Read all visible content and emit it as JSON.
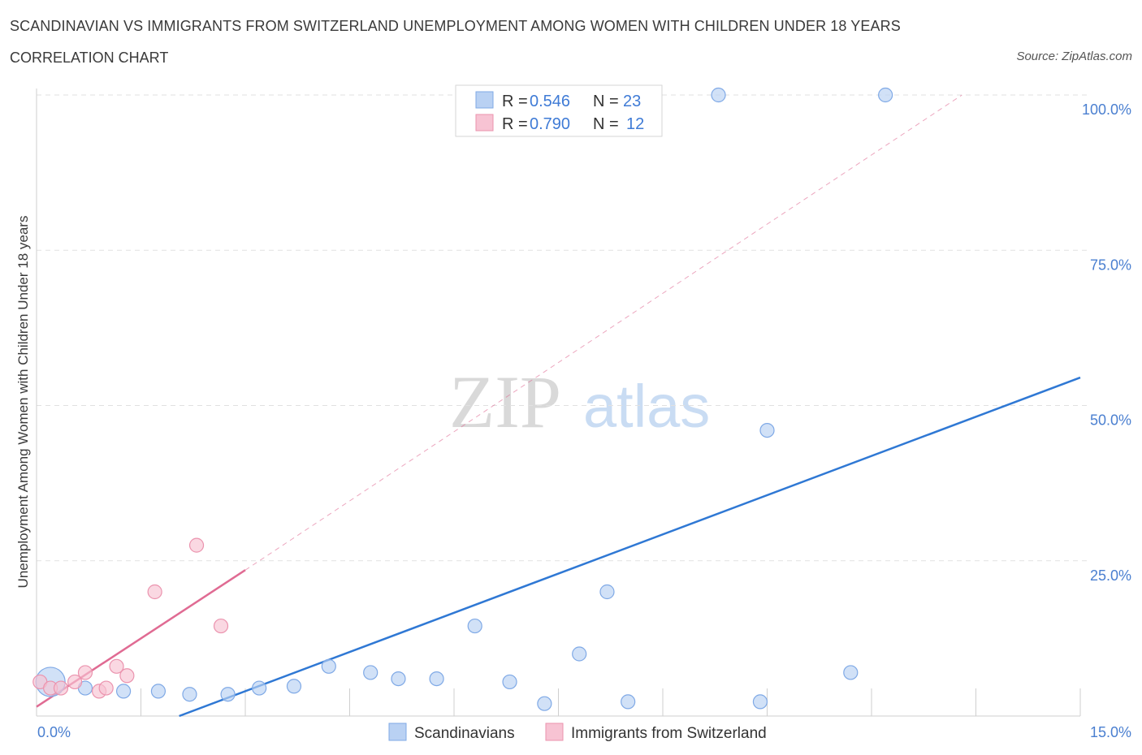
{
  "title": "SCANDINAVIAN VS IMMIGRANTS FROM SWITZERLAND UNEMPLOYMENT AMONG WOMEN WITH CHILDREN UNDER 18 YEARS",
  "subtitle": "CORRELATION CHART",
  "source": "Source: ZipAtlas.com",
  "watermark": {
    "zip": "ZIP",
    "atlas": "atlas"
  },
  "legend_box": {
    "r_label": "R =",
    "n_label": "N =",
    "rows": [
      {
        "r": "0.546",
        "n": "23"
      },
      {
        "r": "0.790",
        "n": "12"
      }
    ]
  },
  "colors": {
    "blue_fill": "#b9d1f3",
    "blue_stroke": "#7fa9e6",
    "blue_line": "#2f78d4",
    "pink_fill": "#f7c3d3",
    "pink_stroke": "#eb93ae",
    "pink_line": "#e06b93",
    "grid": "#e1e1e1",
    "tick_text": "#4a7fd0"
  },
  "chart_data": {
    "type": "scatter",
    "title": "SCANDINAVIAN VS IMMIGRANTS FROM SWITZERLAND UNEMPLOYMENT AMONG WOMEN WITH CHILDREN UNDER 18 YEARS",
    "subtitle": "CORRELATION CHART",
    "xlabel": "",
    "ylabel": "Unemployment Among Women with Children Under 18 years",
    "xlim": [
      0,
      15
    ],
    "ylim": [
      0,
      100
    ],
    "x_tick_labels": [
      "0.0%",
      "15.0%"
    ],
    "y_ticks": [
      25,
      50,
      75,
      100
    ],
    "y_tick_labels": [
      "25.0%",
      "50.0%",
      "75.0%",
      "100.0%"
    ],
    "grid": true,
    "legend_position": "top-center and bottom",
    "series": [
      {
        "name": "Scandinavians",
        "r": 0.546,
        "n": 23,
        "points": [
          {
            "x": 0.2,
            "y": 5.5,
            "big": true
          },
          {
            "x": 0.7,
            "y": 4.5
          },
          {
            "x": 1.25,
            "y": 4.0
          },
          {
            "x": 1.75,
            "y": 4.0
          },
          {
            "x": 2.2,
            "y": 3.5
          },
          {
            "x": 2.75,
            "y": 3.5
          },
          {
            "x": 3.2,
            "y": 4.5
          },
          {
            "x": 3.7,
            "y": 4.8
          },
          {
            "x": 4.2,
            "y": 8.0
          },
          {
            "x": 4.8,
            "y": 7.0
          },
          {
            "x": 5.2,
            "y": 6.0
          },
          {
            "x": 5.75,
            "y": 6.0
          },
          {
            "x": 6.3,
            "y": 14.5
          },
          {
            "x": 6.8,
            "y": 5.5
          },
          {
            "x": 7.3,
            "y": 2.0
          },
          {
            "x": 7.8,
            "y": 10.0
          },
          {
            "x": 8.2,
            "y": 20.0
          },
          {
            "x": 8.5,
            "y": 2.3
          },
          {
            "x": 9.8,
            "y": 100.0
          },
          {
            "x": 10.5,
            "y": 46.0
          },
          {
            "x": 10.4,
            "y": 2.3
          },
          {
            "x": 11.7,
            "y": 7.0
          },
          {
            "x": 12.2,
            "y": 100.0
          }
        ],
        "trend": {
          "x0": 2.05,
          "y0": 0.0,
          "x1": 15.0,
          "y1": 54.5
        }
      },
      {
        "name": "Immigrants from Switzerland",
        "r": 0.79,
        "n": 12,
        "points": [
          {
            "x": 0.05,
            "y": 5.5
          },
          {
            "x": 0.2,
            "y": 4.5
          },
          {
            "x": 0.35,
            "y": 4.5
          },
          {
            "x": 0.55,
            "y": 5.5
          },
          {
            "x": 0.7,
            "y": 7.0
          },
          {
            "x": 0.9,
            "y": 4.0
          },
          {
            "x": 1.0,
            "y": 4.5
          },
          {
            "x": 1.15,
            "y": 8.0
          },
          {
            "x": 1.3,
            "y": 6.5
          },
          {
            "x": 1.7,
            "y": 20.0
          },
          {
            "x": 2.3,
            "y": 27.5
          },
          {
            "x": 2.65,
            "y": 14.5
          }
        ],
        "trend": {
          "x0": 0.0,
          "y0": 1.5,
          "x1": 3.0,
          "y1": 23.5
        },
        "trend_ext": {
          "x0": 3.0,
          "y0": 23.5,
          "x1": 13.3,
          "y1": 100.0
        }
      }
    ]
  },
  "bottom_legend": [
    "Scandinavians",
    "Immigrants from Switzerland"
  ]
}
